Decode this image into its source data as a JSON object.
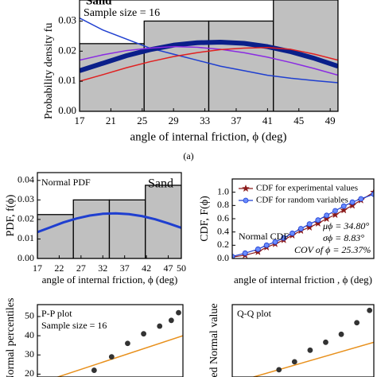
{
  "chart_data": [
    {
      "type": "histogram",
      "ylabel": "Probability density fu",
      "xlabel": "angle of internal friction, ϕ (deg)",
      "caption": "(a)",
      "annotations": [
        "Sand",
        "Sample size = 16"
      ],
      "bins": [
        17,
        25.25,
        33.5,
        41.75,
        50
      ],
      "values": [
        0.0225,
        0.03,
        0.03,
        0.0375
      ],
      "color": "#c0c0c0",
      "xlim": [
        17,
        50
      ],
      "xticks": [
        17,
        21,
        25,
        29,
        33,
        37,
        41,
        45,
        49
      ],
      "ylim": [
        0,
        0.037
      ],
      "yticks": [
        {
          "value": 0,
          "label": "0.00"
        },
        0.01,
        0.02,
        0.03
      ],
      "series": [
        {
          "color": "#1f3fd0",
          "style": "line",
          "line_width": 1.5,
          "x": [
            17,
            20,
            23,
            26,
            29,
            32,
            35,
            38,
            41,
            44,
            47,
            50
          ],
          "values": [
            0.031,
            0.027,
            0.024,
            0.021,
            0.019,
            0.017,
            0.015,
            0.0135,
            0.012,
            0.011,
            0.0102,
            0.0095
          ]
        },
        {
          "color": "#0a1f8a",
          "style": "line",
          "line_width": 6,
          "x": [
            17,
            20,
            23,
            26,
            29,
            32,
            35,
            38,
            41,
            44,
            47,
            50
          ],
          "values": [
            0.0135,
            0.016,
            0.0185,
            0.0205,
            0.022,
            0.0228,
            0.023,
            0.0226,
            0.0215,
            0.0198,
            0.0176,
            0.015
          ]
        },
        {
          "color": "#8a2be2",
          "style": "line",
          "line_width": 1.5,
          "x": [
            17,
            20,
            23,
            26,
            29,
            32,
            35,
            38,
            41,
            44,
            47,
            50
          ],
          "values": [
            0.017,
            0.0188,
            0.0202,
            0.021,
            0.0215,
            0.0213,
            0.0206,
            0.0195,
            0.018,
            0.0162,
            0.0142,
            0.012
          ]
        },
        {
          "color": "#e02020",
          "style": "line",
          "line_width": 1.5,
          "x": [
            17,
            20,
            23,
            26,
            29,
            32,
            35,
            38,
            41,
            44,
            47,
            50
          ],
          "values": [
            0.01,
            0.0122,
            0.0145,
            0.0165,
            0.0182,
            0.0195,
            0.0205,
            0.021,
            0.0212,
            0.0206,
            0.019,
            0.017
          ]
        }
      ]
    },
    {
      "type": "histogram",
      "ylabel": "PDF, f(ϕ)",
      "xlabel": "angle of internal friction, ϕ (deg)",
      "annotations": [
        "Normal PDF",
        "Sand"
      ],
      "bins": [
        17,
        25.25,
        33.5,
        41.75,
        50
      ],
      "values": [
        0.0225,
        0.03,
        0.03,
        0.0375
      ],
      "color": "#c0c0c0",
      "xlim": [
        17,
        50
      ],
      "xticks": [
        17,
        22,
        27,
        32,
        37,
        42,
        47,
        50
      ],
      "ylim": [
        0,
        0.044
      ],
      "yticks": [
        {
          "value": 0,
          "label": "0.00"
        },
        0.01,
        0.02,
        0.03,
        0.04
      ],
      "series": [
        {
          "color": "#1f3fd0",
          "style": "line",
          "line_width": 3,
          "x": [
            17,
            20,
            23,
            26,
            29,
            32,
            35,
            38,
            41,
            44,
            47,
            50
          ],
          "values": [
            0.0135,
            0.016,
            0.0185,
            0.0205,
            0.022,
            0.0229,
            0.0231,
            0.0227,
            0.0217,
            0.0201,
            0.018,
            0.0157
          ]
        }
      ]
    },
    {
      "type": "line",
      "ylabel": "CDF, F(ϕ)",
      "xlabel": "angle of internal friction , ϕ (deg)",
      "annotations": [
        "Normal  CDF",
        "μϕ = 34.80°",
        "σϕ = 8.83°",
        "COV of ϕ = 25.37%"
      ],
      "xlim": [
        17,
        50
      ],
      "ylim": [
        0,
        1.2
      ],
      "yticks": [
        {
          "value": 0,
          "label": "0.0"
        },
        0.2,
        0.4,
        0.6,
        0.8,
        {
          "value": 1,
          "label": "1.0"
        }
      ],
      "series": [
        {
          "name": "CDF for experimental values",
          "color": "#8b1a1a",
          "style": "line",
          "marker": "star",
          "line_width": 1.2,
          "x": [
            17,
            20,
            23,
            25,
            27,
            29,
            31,
            33,
            35,
            37,
            39,
            41,
            43,
            45,
            47,
            50
          ],
          "values": [
            0.02,
            0.05,
            0.1,
            0.17,
            0.22,
            0.28,
            0.35,
            0.42,
            0.47,
            0.53,
            0.6,
            0.66,
            0.73,
            0.8,
            0.88,
            1.0
          ]
        },
        {
          "name": "CDF for random variables",
          "color": "#1f3fd0",
          "style": "line",
          "marker": "circle",
          "line_width": 1.2,
          "x": [
            17,
            20,
            23,
            25,
            27,
            29,
            31,
            33,
            35,
            37,
            39,
            41,
            43,
            45,
            47,
            50
          ],
          "values": [
            0.03,
            0.08,
            0.14,
            0.2,
            0.25,
            0.31,
            0.38,
            0.45,
            0.52,
            0.58,
            0.65,
            0.72,
            0.79,
            0.85,
            0.9,
            0.97
          ]
        }
      ]
    },
    {
      "type": "scatter",
      "ylabel": "Normal percentiles",
      "annotations": [
        "P-P plot",
        "Sample size = 16"
      ],
      "xlim": [
        0,
        100
      ],
      "ylim": [
        18.5,
        56.2
      ],
      "yticks": [
        20,
        30,
        40,
        50
      ],
      "series": [
        {
          "color": "#e8901c",
          "style": "line",
          "line_width": 1.5,
          "x": [
            0,
            100
          ],
          "values": [
            15,
            40
          ]
        },
        {
          "color": "#333333",
          "style": "marker",
          "marker": "circle",
          "x": [
            39,
            51,
            62,
            73,
            84,
            92,
            97
          ],
          "values": [
            22,
            29,
            36,
            41,
            45,
            48,
            52
          ]
        }
      ]
    },
    {
      "type": "scatter",
      "ylabel": "ed Normal value",
      "annotations": [
        "Q-Q plot"
      ],
      "xlim": [
        0,
        100
      ],
      "ylim": [
        0,
        100
      ],
      "series": [
        {
          "color": "#e8901c",
          "style": "line",
          "line_width": 1.5,
          "x": [
            15,
            100
          ],
          "values": [
            0,
            48
          ]
        },
        {
          "color": "#333333",
          "style": "marker",
          "marker": "circle",
          "x": [
            33,
            44,
            55,
            66,
            77,
            88,
            97
          ],
          "values": [
            10,
            21,
            37,
            48,
            59,
            75,
            92
          ]
        }
      ]
    }
  ]
}
